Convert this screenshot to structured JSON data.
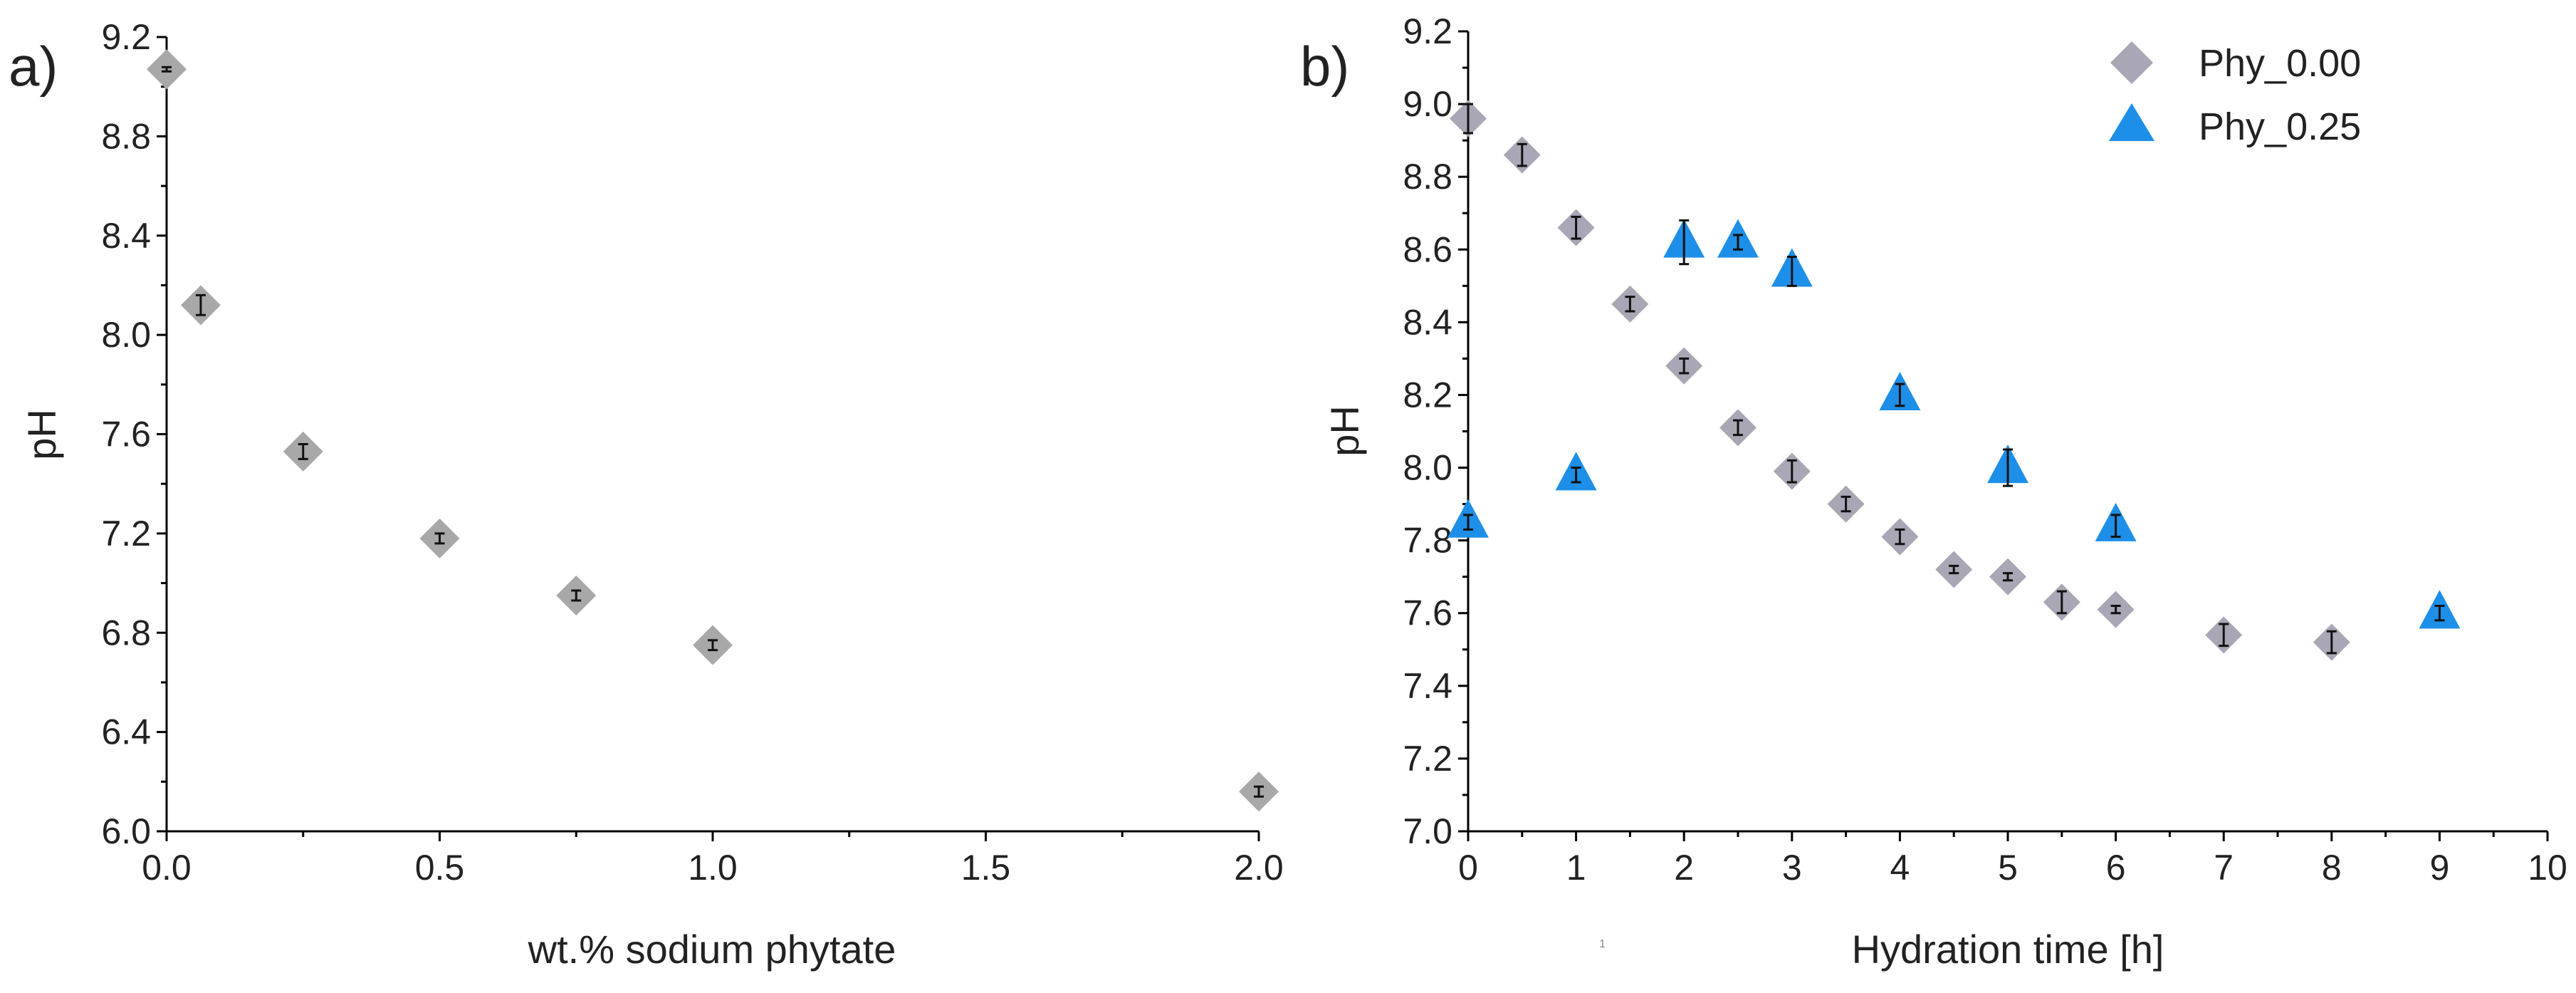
{
  "chart_data": [
    {
      "panel": "a)",
      "type": "scatter",
      "title": "",
      "xlabel": "wt.% sodium phytate",
      "ylabel": "pH",
      "xlim": [
        0.0,
        2.0
      ],
      "ylim": [
        6.0,
        9.2
      ],
      "xticks": [
        0.0,
        0.5,
        1.0,
        1.5,
        2.0
      ],
      "xtick_labels": [
        "0.0",
        "0.5",
        "1.0",
        "1.5",
        "2.0"
      ],
      "yticks": [
        6.0,
        6.4,
        6.8,
        7.2,
        7.6,
        8.0,
        8.4,
        8.8,
        9.2
      ],
      "ytick_labels": [
        "6.0",
        "6.4",
        "6.8",
        "7.2",
        "7.6",
        "8.0",
        "8.4",
        "8.8",
        "9.2"
      ],
      "grid": false,
      "series": [
        {
          "name": "",
          "marker": "diamond",
          "color": "#a8a8a8",
          "x": [
            0.0,
            0.0625,
            0.25,
            0.5,
            0.75,
            1.0,
            2.0
          ],
          "y": [
            9.07,
            8.12,
            7.53,
            7.18,
            6.95,
            6.75,
            6.16
          ],
          "err": [
            0.0,
            0.04,
            0.03,
            0.02,
            0.02,
            0.02,
            0.02
          ]
        }
      ]
    },
    {
      "panel": "b)",
      "type": "scatter",
      "title": "",
      "xlabel": "Hydration time [h]",
      "ylabel": "pH",
      "xlim": [
        0,
        10
      ],
      "ylim": [
        7.0,
        9.2
      ],
      "xticks": [
        0,
        1,
        2,
        3,
        4,
        5,
        6,
        7,
        8,
        9,
        10
      ],
      "xtick_labels": [
        "0",
        "1",
        "2",
        "3",
        "4",
        "5",
        "6",
        "7",
        "8",
        "9",
        "10"
      ],
      "yticks": [
        7.0,
        7.2,
        7.4,
        7.6,
        7.8,
        8.0,
        8.2,
        8.4,
        8.6,
        8.8,
        9.0,
        9.2
      ],
      "ytick_labels": [
        "7.0",
        "7.2",
        "7.4",
        "7.6",
        "7.8",
        "8.0",
        "8.2",
        "8.4",
        "8.6",
        "8.8",
        "9.0",
        "9.2"
      ],
      "grid": false,
      "legend_position": "top-right",
      "series": [
        {
          "name": "Phy_0.00",
          "marker": "diamond",
          "color": "#a9a6b5",
          "x": [
            0,
            0.5,
            1,
            1.5,
            2,
            2.5,
            3,
            3.5,
            4,
            4.5,
            5,
            5.5,
            6,
            7,
            8
          ],
          "y": [
            8.96,
            8.86,
            8.66,
            8.45,
            8.28,
            8.11,
            7.99,
            7.9,
            7.81,
            7.72,
            7.7,
            7.63,
            7.61,
            7.54,
            7.52
          ],
          "err": [
            0.04,
            0.03,
            0.03,
            0.02,
            0.02,
            0.02,
            0.03,
            0.02,
            0.02,
            0.01,
            0.01,
            0.03,
            0.01,
            0.03,
            0.03
          ]
        },
        {
          "name": "Phy_0.25",
          "marker": "triangle-up",
          "color": "#1e8fe8",
          "x": [
            0,
            1,
            2,
            2.5,
            3,
            4,
            5,
            6,
            9
          ],
          "y": [
            7.85,
            7.98,
            8.62,
            8.62,
            8.54,
            8.2,
            8.0,
            7.84,
            7.6
          ],
          "err": [
            0.02,
            0.02,
            0.06,
            0.02,
            0.04,
            0.03,
            0.05,
            0.03,
            0.02
          ]
        }
      ]
    }
  ],
  "footnote": "1"
}
